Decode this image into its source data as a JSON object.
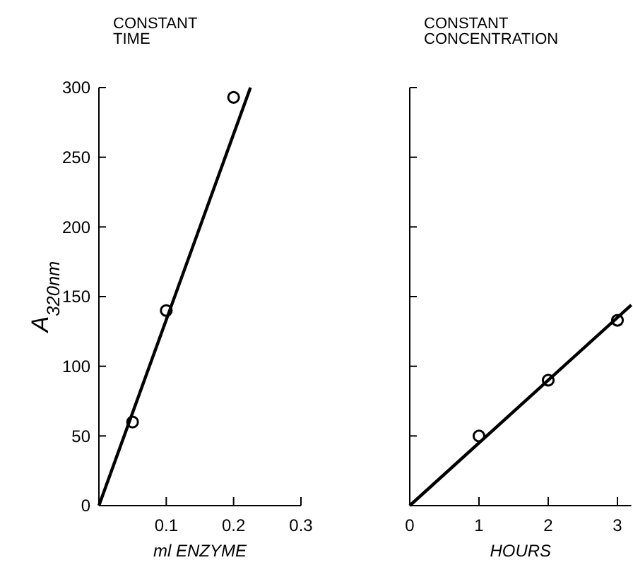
{
  "chart_data": [
    {
      "type": "scatter",
      "title": "CONSTANT\nTIME",
      "xlabel": "ml ENZYME",
      "ylabel": "A$_{320nm}$",
      "xlim": [
        0,
        0.3
      ],
      "xticks": [
        0.1,
        0.2,
        0.3
      ],
      "ylim": [
        0,
        300
      ],
      "yticks": [
        0,
        50,
        100,
        150,
        200,
        250,
        300
      ],
      "grid": false,
      "series": [
        {
          "color": "#000000",
          "marker": "circle",
          "x": [
            0.05,
            0.1,
            0.2
          ],
          "values": [
            60,
            140,
            293
          ]
        },
        {
          "type": "line",
          "color": "#000000",
          "line_style": "solid",
          "x": [
            0,
            0.225
          ],
          "values": [
            0,
            300
          ]
        }
      ]
    },
    {
      "type": "scatter",
      "title": "CONSTANT\nCONCENTRATION",
      "xlabel": "HOURS",
      "xlim": [
        0,
        3.2
      ],
      "xticks": [
        0,
        1,
        2,
        3
      ],
      "ylim": [
        0,
        300
      ],
      "yticks": [
        {
          "value": 0,
          "label": null
        },
        {
          "value": 50,
          "label": null
        },
        {
          "value": 100,
          "label": null
        },
        {
          "value": 150,
          "label": null
        },
        {
          "value": 200,
          "label": null
        },
        {
          "value": 250,
          "label": null
        },
        {
          "value": 300,
          "label": null
        }
      ],
      "tick_labels": "x",
      "grid": false,
      "series": [
        {
          "color": "#000000",
          "marker": "circle",
          "x": [
            1,
            2,
            3
          ],
          "values": [
            50,
            90,
            133
          ]
        },
        {
          "type": "line",
          "color": "#000000",
          "line_style": "solid",
          "x": [
            0,
            3.2
          ],
          "values": [
            0,
            144
          ]
        }
      ]
    }
  ]
}
